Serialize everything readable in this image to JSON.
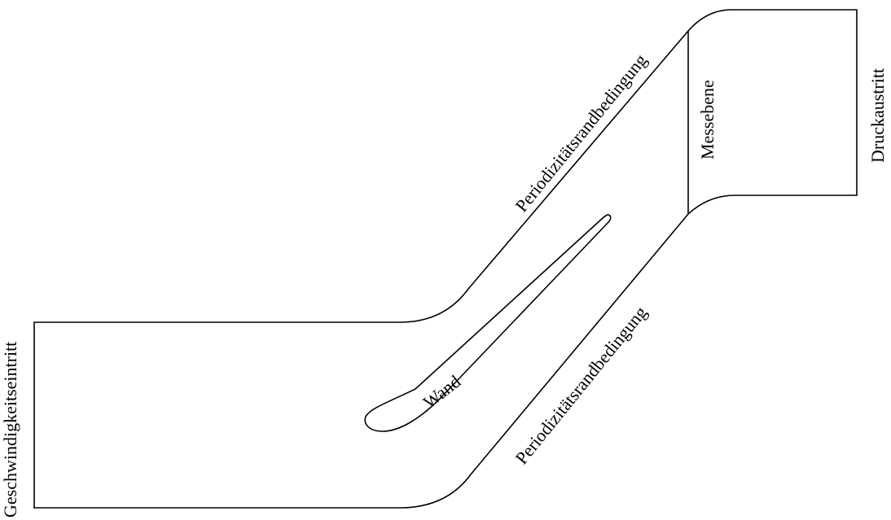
{
  "diagram": {
    "labels": {
      "inlet": "Geschwindigkeitseintritt",
      "periodic_upper": "Periodizitätsrandbedingung",
      "periodic_lower": "Periodizitätsrandbedingung",
      "measurement_plane": "Messebene",
      "outlet": "Druckaustritt",
      "wall": "Wand"
    }
  }
}
